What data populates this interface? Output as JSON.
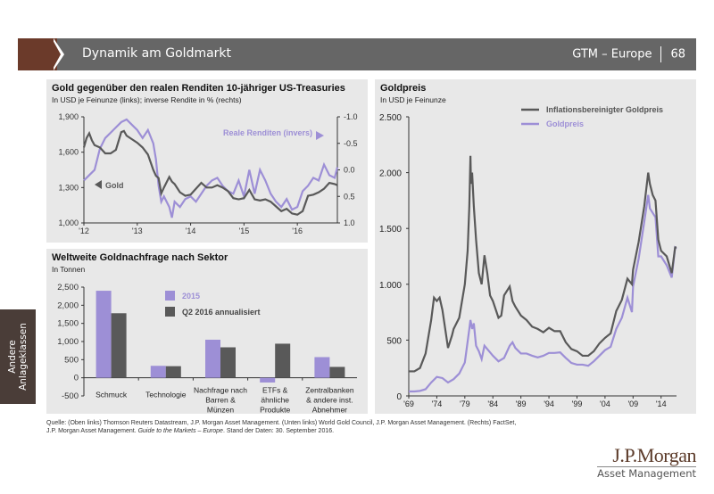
{
  "header": {
    "title": "Dynamik am Goldmarkt",
    "edition": "GTM – Europe",
    "page": "68"
  },
  "side_tab": {
    "line1": "Andere",
    "line2": "Anlageklassen"
  },
  "colors": {
    "purple": "#9d8fd6",
    "dark": "#595959",
    "brown": "#6b3a2a",
    "panel": "#e8e8e8"
  },
  "footer": {
    "line1": "Quelle: (Oben links) Thomson Reuters Datastream, J.P. Morgan Asset Management. (Unten links) World Gold Council, J.P. Morgan Asset Management. (Rechts) FactSet,",
    "line2_a": "J.P. Morgan Asset Management. ",
    "line2_italic": "Guide to the Markets – Europe",
    "line2_b": ". Stand der Daten: 30. September 2016."
  },
  "logo": {
    "name": "J.P.Morgan",
    "sub": "Asset Management"
  },
  "chart_data": [
    {
      "id": "gold-vs-real-yields",
      "type": "line",
      "title": "Gold gegenüber den realen Renditen 10-jähriger US-Treasuries",
      "subtitle": "In USD je Feinunze (links); inverse Rendite in % (rechts)",
      "x_ticks": [
        "'12",
        "'13",
        "'14",
        "'15",
        "'16"
      ],
      "x_range": [
        2012.0,
        2016.75
      ],
      "y_left": {
        "ticks": [
          "1,900",
          "1,600",
          "1,300",
          "1,000"
        ],
        "range": [
          1000,
          1900
        ]
      },
      "y_right": {
        "ticks": [
          "-1.0",
          "-0.5",
          "0.0",
          "0.5",
          "1.0"
        ],
        "range": [
          -1.0,
          1.0
        ],
        "inverted": true
      },
      "annotations": {
        "gold": "Gold",
        "real_yields": "Reale Renditen (invers)"
      },
      "series": [
        {
          "name": "Gold",
          "axis": "left",
          "x": [
            2012.0,
            2012.05,
            2012.1,
            2012.15,
            2012.2,
            2012.3,
            2012.4,
            2012.5,
            2012.6,
            2012.7,
            2012.75,
            2012.8,
            2012.9,
            2013.0,
            2013.1,
            2013.2,
            2013.3,
            2013.35,
            2013.4,
            2013.45,
            2013.5,
            2013.6,
            2013.65,
            2013.7,
            2013.8,
            2013.9,
            2014.0,
            2014.1,
            2014.2,
            2014.3,
            2014.4,
            2014.5,
            2014.6,
            2014.7,
            2014.8,
            2014.9,
            2015.0,
            2015.1,
            2015.2,
            2015.3,
            2015.4,
            2015.5,
            2015.6,
            2015.7,
            2015.8,
            2015.9,
            2016.0,
            2016.1,
            2016.2,
            2016.3,
            2016.4,
            2016.5,
            2016.6,
            2016.7,
            2016.75
          ],
          "y": [
            1640,
            1720,
            1760,
            1700,
            1660,
            1640,
            1590,
            1590,
            1620,
            1770,
            1780,
            1740,
            1710,
            1680,
            1640,
            1580,
            1450,
            1400,
            1380,
            1250,
            1300,
            1390,
            1350,
            1330,
            1260,
            1230,
            1240,
            1290,
            1340,
            1300,
            1300,
            1320,
            1300,
            1270,
            1210,
            1200,
            1210,
            1280,
            1200,
            1190,
            1200,
            1180,
            1140,
            1100,
            1120,
            1080,
            1070,
            1100,
            1230,
            1240,
            1260,
            1290,
            1340,
            1330,
            1320
          ]
        },
        {
          "name": "Reale Renditen (invers)",
          "axis": "right",
          "x": [
            2012.0,
            2012.05,
            2012.1,
            2012.2,
            2012.3,
            2012.4,
            2012.5,
            2012.6,
            2012.7,
            2012.8,
            2012.9,
            2013.0,
            2013.1,
            2013.2,
            2013.3,
            2013.35,
            2013.4,
            2013.45,
            2013.5,
            2013.6,
            2013.65,
            2013.7,
            2013.8,
            2013.9,
            2014.0,
            2014.1,
            2014.2,
            2014.3,
            2014.4,
            2014.5,
            2014.6,
            2014.7,
            2014.8,
            2014.9,
            2015.0,
            2015.1,
            2015.2,
            2015.3,
            2015.4,
            2015.5,
            2015.6,
            2015.7,
            2015.8,
            2015.9,
            2016.0,
            2016.1,
            2016.2,
            2016.3,
            2016.4,
            2016.5,
            2016.6,
            2016.7,
            2016.75
          ],
          "y": [
            0.2,
            0.15,
            0.1,
            0.0,
            -0.4,
            -0.6,
            -0.7,
            -0.8,
            -0.9,
            -0.95,
            -0.85,
            -0.75,
            -0.6,
            -0.75,
            -0.5,
            -0.2,
            0.3,
            0.6,
            0.5,
            0.7,
            0.9,
            0.6,
            0.7,
            0.55,
            0.5,
            0.6,
            0.45,
            0.3,
            0.2,
            0.15,
            0.3,
            0.4,
            0.45,
            0.2,
            0.5,
            0.0,
            0.45,
            0.0,
            0.2,
            0.45,
            0.6,
            0.7,
            0.55,
            0.75,
            0.7,
            0.4,
            0.3,
            0.15,
            0.2,
            -0.1,
            0.1,
            0.15,
            -0.05
          ]
        }
      ]
    },
    {
      "id": "gold-demand-by-sector",
      "type": "bar",
      "title": "Weltweite Goldnachfrage nach Sektor",
      "subtitle": "In Tonnen",
      "categories": [
        "Schmuck",
        "Technologie",
        "Nachfrage nach Barren & Münzen",
        "ETFs & ähnliche Produkte",
        "Zentralbanken & andere inst. Abnehmer"
      ],
      "category_lines": [
        [
          "Schmuck"
        ],
        [
          "Technologie"
        ],
        [
          "Nachfrage nach",
          "Barren &",
          "Münzen"
        ],
        [
          "ETFs &",
          "ähnliche",
          "Produkte"
        ],
        [
          "Zentralbanken",
          "& andere inst.",
          "Abnehmer"
        ]
      ],
      "y_ticks": [
        "2,500",
        "2,000",
        "1,500",
        "1,000",
        "500",
        "0",
        "-500"
      ],
      "ylim": [
        -500,
        2500
      ],
      "legend_position": "top-center",
      "series": [
        {
          "name": "2015",
          "values": [
            2400,
            330,
            1050,
            -130,
            570
          ]
        },
        {
          "name": "Q2 2016 annualisiert",
          "values": [
            1780,
            320,
            840,
            940,
            300
          ]
        }
      ]
    },
    {
      "id": "gold-price-long-term",
      "type": "line",
      "title": "Goldpreis",
      "subtitle": "In USD je Feinunze",
      "x_ticks": [
        "'69",
        "'74",
        "'79",
        "'84",
        "'89",
        "'94",
        "'99",
        "'04",
        "'09",
        "'14"
      ],
      "x_range": [
        1969,
        2016.75
      ],
      "y_ticks": [
        "2.500",
        "2.000",
        "1.500",
        "1.000",
        "500",
        "0"
      ],
      "ylim": [
        0,
        2500
      ],
      "legend_position": "top-right",
      "series": [
        {
          "name": "Inflationsbereinigter Goldpreis",
          "x": [
            1969,
            1970,
            1971,
            1972,
            1973,
            1973.5,
            1974,
            1974.5,
            1975,
            1975.5,
            1976,
            1976.7,
            1977,
            1978,
            1979,
            1979.5,
            1979.8,
            1980.0,
            1980.1,
            1980.3,
            1980.6,
            1981,
            1981.5,
            1982,
            1982.5,
            1983,
            1983.5,
            1984,
            1985,
            1985.5,
            1986,
            1987,
            1987.5,
            1988,
            1989,
            1990,
            1991,
            1992,
            1993,
            1994,
            1995,
            1996,
            1997,
            1998,
            1999,
            2000,
            2001,
            2002,
            2003,
            2004,
            2005,
            2006,
            2007,
            2008,
            2008.8,
            2009,
            2010,
            2011,
            2011.7,
            2012,
            2012.5,
            2013,
            2013.5,
            2014,
            2015,
            2015.9,
            2016.5,
            2016.75
          ],
          "y": [
            220,
            220,
            250,
            380,
            680,
            880,
            850,
            880,
            770,
            600,
            430,
            540,
            600,
            700,
            1000,
            1300,
            1700,
            2150,
            1900,
            2000,
            1700,
            1400,
            1100,
            1000,
            1260,
            1100,
            900,
            850,
            700,
            720,
            900,
            980,
            850,
            800,
            720,
            680,
            620,
            600,
            570,
            610,
            580,
            580,
            480,
            420,
            400,
            360,
            360,
            400,
            470,
            520,
            560,
            760,
            860,
            1050,
            1000,
            1130,
            1380,
            1700,
            2000,
            1900,
            1800,
            1750,
            1400,
            1300,
            1250,
            1100,
            1330,
            1330
          ]
        },
        {
          "name": "Goldpreis",
          "x": [
            1969,
            1970,
            1971,
            1972,
            1973,
            1974,
            1975,
            1976,
            1977,
            1978,
            1979,
            1979.8,
            1980.0,
            1980.3,
            1980.6,
            1981,
            1981.5,
            1982,
            1982.5,
            1983,
            1984,
            1985,
            1986,
            1987,
            1987.5,
            1988,
            1989,
            1990,
            1991,
            1992,
            1993,
            1994,
            1995,
            1996,
            1997,
            1998,
            1999,
            2000,
            2001,
            2002,
            2003,
            2004,
            2005,
            2006,
            2007,
            2008,
            2008.8,
            2009,
            2010,
            2011,
            2011.7,
            2012,
            2013,
            2013.5,
            2014,
            2015,
            2015.9,
            2016.5,
            2016.75
          ],
          "y": [
            40,
            40,
            45,
            60,
            120,
            170,
            160,
            120,
            150,
            200,
            300,
            600,
            680,
            600,
            650,
            450,
            400,
            330,
            450,
            420,
            360,
            310,
            340,
            450,
            480,
            430,
            380,
            380,
            360,
            345,
            360,
            385,
            385,
            390,
            340,
            295,
            280,
            280,
            270,
            310,
            360,
            410,
            440,
            600,
            700,
            880,
            750,
            980,
            1230,
            1560,
            1800,
            1680,
            1600,
            1250,
            1250,
            1170,
            1060,
            1330,
            1320
          ]
        }
      ]
    }
  ]
}
